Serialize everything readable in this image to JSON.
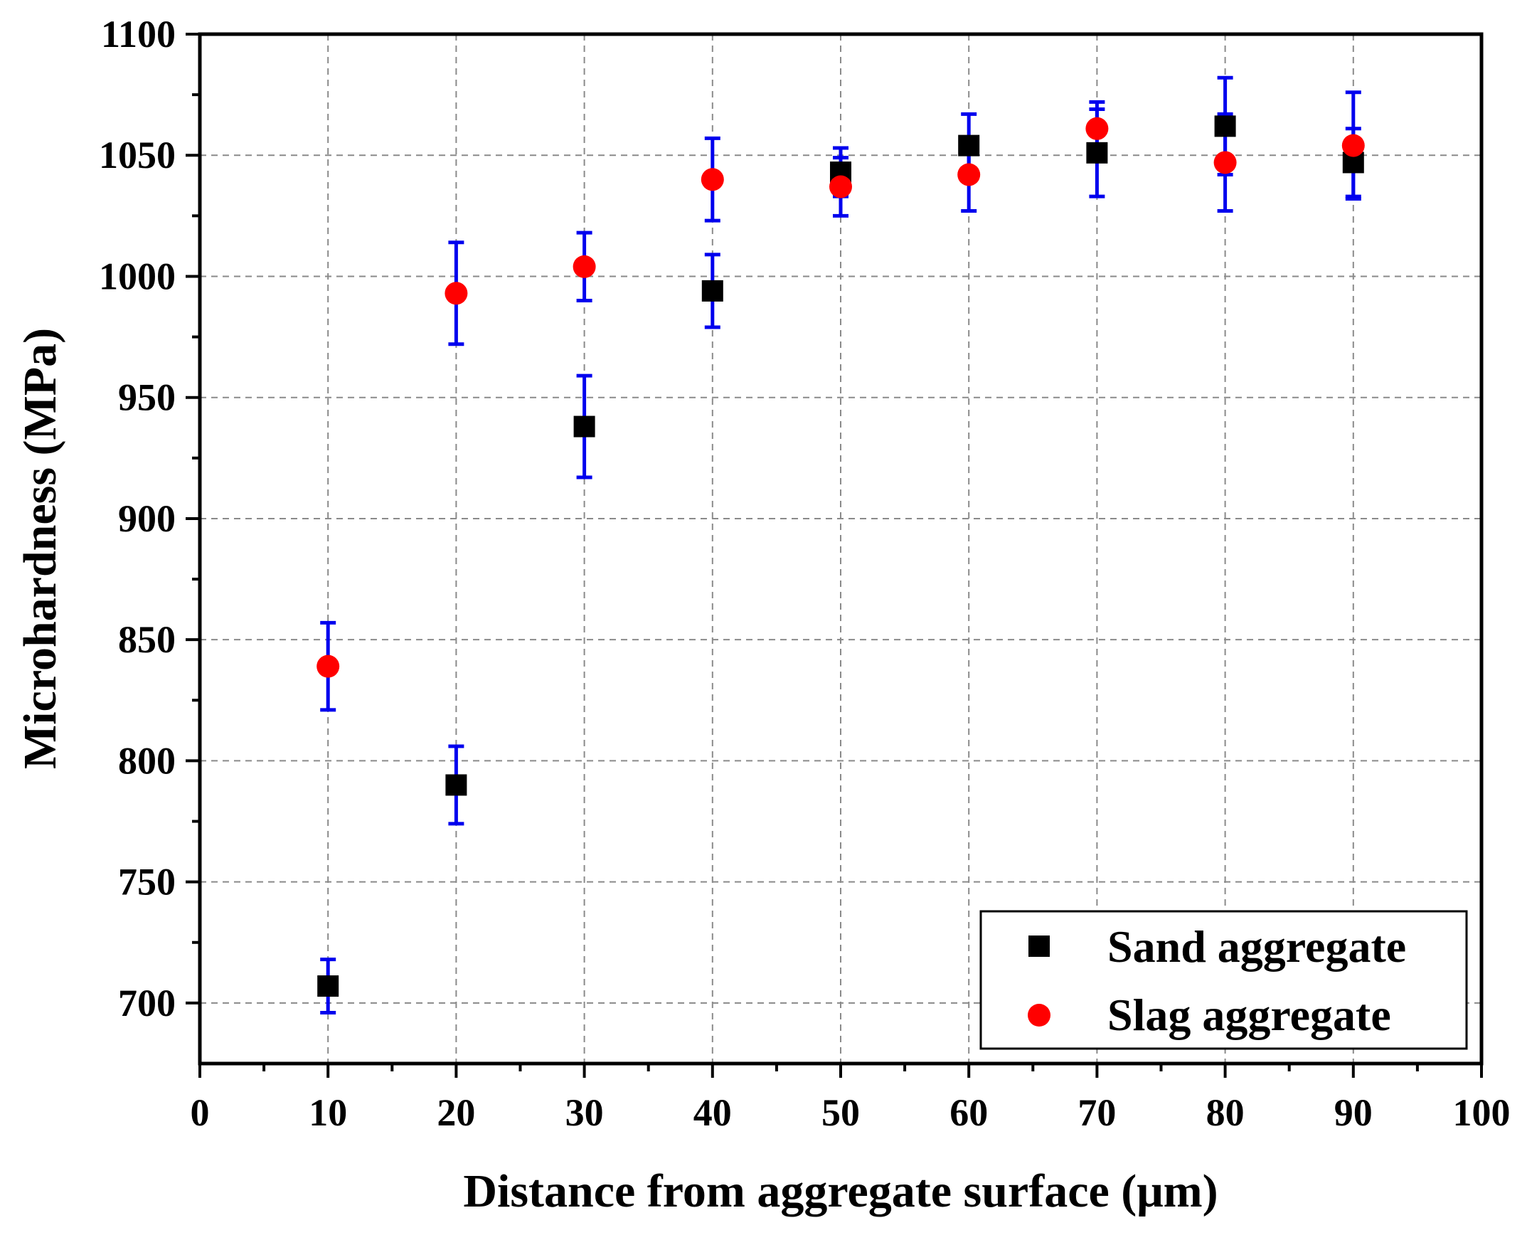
{
  "chart_data": {
    "type": "scatter",
    "title": "",
    "xlabel": "Distance from aggregate surface (μm)",
    "ylabel": "Microhardness (MPa)",
    "xlim": [
      0,
      100
    ],
    "ylim": [
      675,
      1100
    ],
    "xticks": [
      0,
      10,
      20,
      30,
      40,
      50,
      60,
      70,
      80,
      90,
      100
    ],
    "xtick_labels": [
      "0",
      "10",
      "20",
      "30",
      "40",
      "50",
      "60",
      "70",
      "80",
      "90",
      "100"
    ],
    "yticks": [
      700,
      750,
      800,
      850,
      900,
      950,
      1000,
      1050,
      1100
    ],
    "ytick_labels": [
      "700",
      "750",
      "800",
      "850",
      "900",
      "950",
      "1000",
      "1050",
      "1100"
    ],
    "grid": true,
    "legend_position": "bottom-right",
    "error_bar_color": "#0000ee",
    "series": [
      {
        "name": "Sand aggregate",
        "marker": "square",
        "color": "#000000",
        "x": [
          10,
          20,
          30,
          40,
          50,
          60,
          70,
          80,
          90
        ],
        "y": [
          707,
          790,
          938,
          994,
          1043,
          1054,
          1051,
          1062,
          1047
        ],
        "err": [
          11,
          16,
          21,
          15,
          10,
          13,
          18,
          20,
          14
        ]
      },
      {
        "name": "Slag aggregate",
        "marker": "circle",
        "color": "#ff0000",
        "x": [
          10,
          20,
          30,
          40,
          50,
          60,
          70,
          80,
          90
        ],
        "y": [
          839,
          993,
          1004,
          1040,
          1037,
          1042,
          1061,
          1047,
          1054
        ],
        "err": [
          18,
          21,
          14,
          17,
          12,
          15,
          11,
          20,
          22
        ]
      }
    ]
  }
}
